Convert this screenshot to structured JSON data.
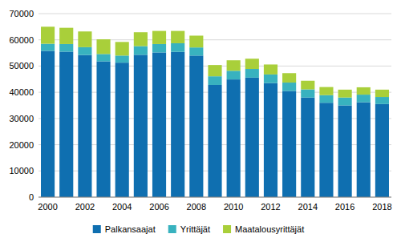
{
  "chart_data": {
    "type": "bar",
    "stacked": true,
    "grid": true,
    "legend": "bottom",
    "categories": [
      "2000",
      null,
      "2002",
      null,
      "2004",
      null,
      "2006",
      null,
      "2008",
      null,
      "2010",
      null,
      "2012",
      null,
      "2014",
      null,
      "2016",
      null,
      "2018"
    ],
    "series": [
      {
        "name": "Palkansaajat",
        "color": "#0f6fb0",
        "values": [
          55800,
          55500,
          54200,
          51800,
          51300,
          54300,
          55200,
          55400,
          54000,
          42800,
          44900,
          45600,
          43500,
          40500,
          38000,
          36000,
          35000,
          36200,
          35500
        ]
      },
      {
        "name": "Yrittäjät",
        "color": "#38b2bf",
        "values": [
          2700,
          2900,
          3000,
          2800,
          2700,
          3300,
          3200,
          3300,
          3100,
          3300,
          3300,
          3300,
          3300,
          3200,
          3100,
          2900,
          3000,
          2900,
          2700
        ]
      },
      {
        "name": "Maatalousyrittäjät",
        "color": "#a9cf3a",
        "values": [
          6500,
          6200,
          6000,
          5600,
          5200,
          5300,
          5000,
          4700,
          4500,
          4300,
          4000,
          3900,
          3800,
          3600,
          3300,
          3100,
          3000,
          2800,
          2800
        ]
      }
    ],
    "ylim": [
      0,
      70000
    ],
    "yticks": [
      0,
      10000,
      20000,
      30000,
      40000,
      50000,
      60000,
      70000
    ]
  }
}
